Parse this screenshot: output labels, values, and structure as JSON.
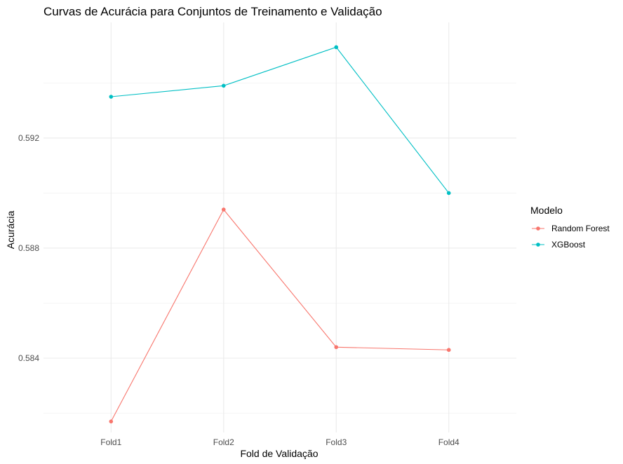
{
  "chart_data": {
    "type": "line",
    "title": "Curvas de Acurácia para Conjuntos de Treinamento e Validação",
    "xlabel": "Fold de Validação",
    "ylabel": "Acurácia",
    "categories": [
      "Fold1",
      "Fold2",
      "Fold3",
      "Fold4"
    ],
    "ylim": [
      0.5813,
      0.5962
    ],
    "y_ticks": [
      0.584,
      0.588,
      0.592
    ],
    "y_tick_labels": [
      "0.584",
      "0.588",
      "0.592"
    ],
    "grid": true,
    "legend": {
      "title": "Modelo",
      "position": "right"
    },
    "series": [
      {
        "name": "Random Forest",
        "color": "#F8766D",
        "values": [
          0.5817,
          0.5894,
          0.5844,
          0.5843
        ]
      },
      {
        "name": "XGBoost",
        "color": "#00BFC4",
        "values": [
          0.5935,
          0.5939,
          0.5953,
          0.59
        ]
      }
    ]
  }
}
